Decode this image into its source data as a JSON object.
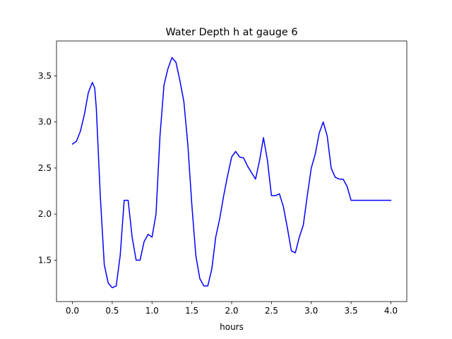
{
  "chart_data": {
    "type": "line",
    "title": "Water Depth h at gauge 6",
    "xlabel": "hours",
    "ylabel": "",
    "xlim": [
      -0.2,
      4.2
    ],
    "ylim": [
      1.05,
      3.88
    ],
    "xticks": [
      0.0,
      0.5,
      1.0,
      1.5,
      2.0,
      2.5,
      3.0,
      3.5,
      4.0
    ],
    "xtick_labels": [
      "0.0",
      "0.5",
      "1.0",
      "1.5",
      "2.0",
      "2.5",
      "3.0",
      "3.5",
      "4.0"
    ],
    "yticks": [
      1.5,
      2.0,
      2.5,
      3.0,
      3.5
    ],
    "ytick_labels": [
      "1.5",
      "2.0",
      "2.5",
      "3.0",
      "3.5"
    ],
    "grid": false,
    "legend": "none",
    "series": [
      {
        "color": "#0000ff",
        "x": [
          0.0,
          0.05,
          0.1,
          0.15,
          0.2,
          0.25,
          0.28,
          0.3,
          0.35,
          0.4,
          0.45,
          0.5,
          0.55,
          0.6,
          0.65,
          0.7,
          0.75,
          0.8,
          0.85,
          0.9,
          0.95,
          1.0,
          1.05,
          1.1,
          1.15,
          1.2,
          1.25,
          1.3,
          1.35,
          1.4,
          1.45,
          1.5,
          1.55,
          1.6,
          1.65,
          1.7,
          1.75,
          1.8,
          1.85,
          1.9,
          1.95,
          2.0,
          2.05,
          2.1,
          2.15,
          2.2,
          2.25,
          2.3,
          2.35,
          2.4,
          2.45,
          2.5,
          2.55,
          2.6,
          2.65,
          2.7,
          2.75,
          2.8,
          2.85,
          2.9,
          2.95,
          3.0,
          3.05,
          3.1,
          3.15,
          3.2,
          3.25,
          3.3,
          3.35,
          3.4,
          3.45,
          3.5,
          3.55,
          3.6,
          3.65,
          3.7,
          3.75,
          3.8,
          3.85,
          3.9,
          3.95,
          4.0
        ],
        "y": [
          2.76,
          2.79,
          2.9,
          3.08,
          3.32,
          3.43,
          3.37,
          3.15,
          2.2,
          1.45,
          1.25,
          1.2,
          1.22,
          1.55,
          2.15,
          2.15,
          1.75,
          1.5,
          1.5,
          1.7,
          1.78,
          1.75,
          2.0,
          2.85,
          3.4,
          3.58,
          3.7,
          3.65,
          3.45,
          3.22,
          2.75,
          2.1,
          1.55,
          1.3,
          1.22,
          1.22,
          1.4,
          1.75,
          1.95,
          2.2,
          2.42,
          2.62,
          2.68,
          2.62,
          2.61,
          2.52,
          2.45,
          2.38,
          2.58,
          2.83,
          2.58,
          2.2,
          2.2,
          2.22,
          2.08,
          1.85,
          1.6,
          1.58,
          1.75,
          1.88,
          2.2,
          2.5,
          2.65,
          2.88,
          3.0,
          2.85,
          2.5,
          2.4,
          2.38,
          2.38,
          2.3,
          2.15,
          2.15,
          2.15,
          2.15,
          2.15,
          2.15,
          2.15,
          2.15,
          2.15,
          2.15,
          2.15
        ]
      }
    ]
  }
}
